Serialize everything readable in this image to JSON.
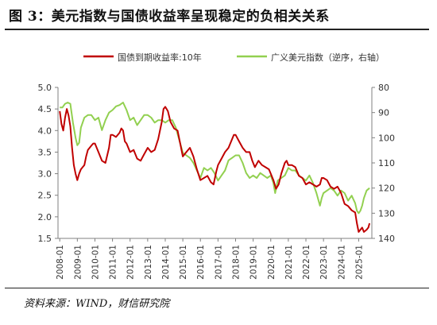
{
  "figure": {
    "title": "图 3：美元指数与国债收益率呈现稳定的负相关关系",
    "source": "资料来源：WIND，财信研究院"
  },
  "colors": {
    "bond": "#c00000",
    "dxy": "#92d050",
    "axis": "#808080",
    "text": "#333333"
  },
  "chart_data": {
    "type": "line",
    "title": "",
    "legend_placement": "top",
    "grid": false,
    "categories": [
      "2008-01",
      "2009-01",
      "2010-01",
      "2011-01",
      "2012-01",
      "2013-01",
      "2014-01",
      "2015-01",
      "2016-01",
      "2017-01",
      "2018-01",
      "2019-01",
      "2020-01",
      "2021-01",
      "2022-01",
      "2023-01",
      "2024-01",
      "2025-01"
    ],
    "x_range": [
      2007.9,
      2025.75
    ],
    "y_left": {
      "range": [
        1.5,
        5.0
      ],
      "ticks": [
        "1.5",
        "2.0",
        "2.5",
        "3.0",
        "3.5",
        "4.0",
        "4.5",
        "5.0"
      ]
    },
    "y_right": {
      "range": [
        140,
        80
      ],
      "inverted": true,
      "ticks": [
        "80",
        "90",
        "100",
        "110",
        "120",
        "130",
        "140"
      ]
    },
    "series": [
      {
        "name": "国债到期收益率:10年",
        "axis": "left",
        "color": "#c00000",
        "points": [
          [
            2008.0,
            4.45
          ],
          [
            2008.1,
            4.15
          ],
          [
            2008.2,
            4.0
          ],
          [
            2008.3,
            4.3
          ],
          [
            2008.4,
            4.5
          ],
          [
            2008.5,
            4.35
          ],
          [
            2008.6,
            4.1
          ],
          [
            2008.7,
            3.6
          ],
          [
            2008.8,
            3.2
          ],
          [
            2008.9,
            3.0
          ],
          [
            2009.0,
            2.85
          ],
          [
            2009.1,
            3.0
          ],
          [
            2009.2,
            3.1
          ],
          [
            2009.3,
            3.15
          ],
          [
            2009.4,
            3.2
          ],
          [
            2009.5,
            3.4
          ],
          [
            2009.6,
            3.55
          ],
          [
            2009.7,
            3.6
          ],
          [
            2009.8,
            3.65
          ],
          [
            2009.9,
            3.7
          ],
          [
            2010.0,
            3.7
          ],
          [
            2010.2,
            3.5
          ],
          [
            2010.4,
            3.3
          ],
          [
            2010.6,
            3.25
          ],
          [
            2010.8,
            3.6
          ],
          [
            2010.9,
            3.9
          ],
          [
            2011.0,
            3.9
          ],
          [
            2011.2,
            3.85
          ],
          [
            2011.4,
            3.95
          ],
          [
            2011.5,
            4.05
          ],
          [
            2011.6,
            4.0
          ],
          [
            2011.7,
            3.75
          ],
          [
            2011.8,
            3.7
          ],
          [
            2011.9,
            3.6
          ],
          [
            2012.0,
            3.5
          ],
          [
            2012.2,
            3.55
          ],
          [
            2012.4,
            3.35
          ],
          [
            2012.6,
            3.3
          ],
          [
            2012.8,
            3.45
          ],
          [
            2013.0,
            3.6
          ],
          [
            2013.2,
            3.5
          ],
          [
            2013.4,
            3.55
          ],
          [
            2013.6,
            3.8
          ],
          [
            2013.8,
            4.2
          ],
          [
            2013.9,
            4.5
          ],
          [
            2014.0,
            4.55
          ],
          [
            2014.15,
            4.45
          ],
          [
            2014.3,
            4.2
          ],
          [
            2014.5,
            4.05
          ],
          [
            2014.7,
            4.0
          ],
          [
            2014.85,
            3.7
          ],
          [
            2015.0,
            3.4
          ],
          [
            2015.2,
            3.5
          ],
          [
            2015.4,
            3.6
          ],
          [
            2015.6,
            3.4
          ],
          [
            2015.8,
            3.1
          ],
          [
            2016.0,
            2.85
          ],
          [
            2016.2,
            2.9
          ],
          [
            2016.4,
            2.95
          ],
          [
            2016.6,
            2.8
          ],
          [
            2016.75,
            2.75
          ],
          [
            2016.9,
            3.05
          ],
          [
            2017.0,
            3.2
          ],
          [
            2017.2,
            3.35
          ],
          [
            2017.4,
            3.5
          ],
          [
            2017.6,
            3.6
          ],
          [
            2017.8,
            3.8
          ],
          [
            2017.9,
            3.9
          ],
          [
            2018.0,
            3.9
          ],
          [
            2018.2,
            3.75
          ],
          [
            2018.4,
            3.6
          ],
          [
            2018.6,
            3.5
          ],
          [
            2018.8,
            3.5
          ],
          [
            2018.95,
            3.3
          ],
          [
            2019.1,
            3.15
          ],
          [
            2019.3,
            3.3
          ],
          [
            2019.5,
            3.2
          ],
          [
            2019.7,
            3.15
          ],
          [
            2019.9,
            3.1
          ],
          [
            2020.0,
            3.0
          ],
          [
            2020.15,
            2.85
          ],
          [
            2020.3,
            2.65
          ],
          [
            2020.45,
            2.75
          ],
          [
            2020.6,
            3.0
          ],
          [
            2020.8,
            3.25
          ],
          [
            2020.9,
            3.3
          ],
          [
            2021.0,
            3.2
          ],
          [
            2021.2,
            3.2
          ],
          [
            2021.4,
            3.15
          ],
          [
            2021.6,
            2.95
          ],
          [
            2021.8,
            2.9
          ],
          [
            2022.0,
            2.75
          ],
          [
            2022.2,
            2.8
          ],
          [
            2022.4,
            2.75
          ],
          [
            2022.6,
            2.7
          ],
          [
            2022.8,
            2.75
          ],
          [
            2022.9,
            2.9
          ],
          [
            2023.0,
            2.9
          ],
          [
            2023.2,
            2.85
          ],
          [
            2023.4,
            2.7
          ],
          [
            2023.6,
            2.65
          ],
          [
            2023.8,
            2.7
          ],
          [
            2024.0,
            2.55
          ],
          [
            2024.2,
            2.3
          ],
          [
            2024.4,
            2.25
          ],
          [
            2024.6,
            2.15
          ],
          [
            2024.8,
            2.1
          ],
          [
            2024.9,
            1.85
          ],
          [
            2025.0,
            1.65
          ],
          [
            2025.1,
            1.7
          ],
          [
            2025.2,
            1.75
          ],
          [
            2025.3,
            1.65
          ],
          [
            2025.45,
            1.7
          ],
          [
            2025.55,
            1.75
          ],
          [
            2025.62,
            1.85
          ]
        ]
      },
      {
        "name": "广义美元指数（逆序，右轴）",
        "axis": "right",
        "color": "#92d050",
        "points": [
          [
            2008.0,
            88
          ],
          [
            2008.15,
            88
          ],
          [
            2008.3,
            86.5
          ],
          [
            2008.45,
            86
          ],
          [
            2008.6,
            86.5
          ],
          [
            2008.75,
            94
          ],
          [
            2008.9,
            100
          ],
          [
            2009.0,
            103
          ],
          [
            2009.1,
            102
          ],
          [
            2009.2,
            96
          ],
          [
            2009.4,
            92
          ],
          [
            2009.6,
            91
          ],
          [
            2009.8,
            91
          ],
          [
            2010.0,
            93
          ],
          [
            2010.2,
            92
          ],
          [
            2010.4,
            97
          ],
          [
            2010.6,
            93
          ],
          [
            2010.8,
            90
          ],
          [
            2011.0,
            89
          ],
          [
            2011.2,
            87.5
          ],
          [
            2011.4,
            87
          ],
          [
            2011.6,
            86
          ],
          [
            2011.8,
            89
          ],
          [
            2012.0,
            93
          ],
          [
            2012.2,
            92
          ],
          [
            2012.4,
            95
          ],
          [
            2012.6,
            93
          ],
          [
            2012.8,
            91
          ],
          [
            2013.0,
            91
          ],
          [
            2013.2,
            92
          ],
          [
            2013.4,
            94
          ],
          [
            2013.6,
            93
          ],
          [
            2013.8,
            93
          ],
          [
            2014.0,
            94
          ],
          [
            2014.2,
            93
          ],
          [
            2014.4,
            93
          ],
          [
            2014.6,
            96
          ],
          [
            2014.8,
            101
          ],
          [
            2015.0,
            106
          ],
          [
            2015.2,
            107
          ],
          [
            2015.4,
            108
          ],
          [
            2015.6,
            110
          ],
          [
            2015.8,
            113
          ],
          [
            2016.0,
            116
          ],
          [
            2016.2,
            112
          ],
          [
            2016.4,
            113
          ],
          [
            2016.6,
            112
          ],
          [
            2016.8,
            114
          ],
          [
            2017.0,
            117
          ],
          [
            2017.2,
            115
          ],
          [
            2017.4,
            113
          ],
          [
            2017.6,
            109
          ],
          [
            2017.8,
            108
          ],
          [
            2018.0,
            107
          ],
          [
            2018.2,
            107
          ],
          [
            2018.4,
            110
          ],
          [
            2018.6,
            114
          ],
          [
            2018.8,
            116
          ],
          [
            2019.0,
            115
          ],
          [
            2019.2,
            116
          ],
          [
            2019.4,
            114
          ],
          [
            2019.6,
            115
          ],
          [
            2019.8,
            116
          ],
          [
            2020.0,
            115
          ],
          [
            2020.15,
            118
          ],
          [
            2020.25,
            122
          ],
          [
            2020.4,
            117
          ],
          [
            2020.6,
            116
          ],
          [
            2020.8,
            115
          ],
          [
            2021.0,
            112
          ],
          [
            2021.2,
            113
          ],
          [
            2021.4,
            113
          ],
          [
            2021.6,
            115
          ],
          [
            2021.8,
            116
          ],
          [
            2022.0,
            117
          ],
          [
            2022.2,
            115
          ],
          [
            2022.4,
            118
          ],
          [
            2022.6,
            122
          ],
          [
            2022.8,
            127
          ],
          [
            2022.9,
            124
          ],
          [
            2023.0,
            122
          ],
          [
            2023.2,
            121
          ],
          [
            2023.4,
            120
          ],
          [
            2023.6,
            121
          ],
          [
            2023.8,
            123
          ],
          [
            2024.0,
            121
          ],
          [
            2024.2,
            122
          ],
          [
            2024.4,
            125
          ],
          [
            2024.6,
            123
          ],
          [
            2024.8,
            126
          ],
          [
            2024.9,
            129
          ],
          [
            2025.0,
            130
          ],
          [
            2025.1,
            129
          ],
          [
            2025.2,
            127
          ],
          [
            2025.3,
            124
          ],
          [
            2025.45,
            121
          ],
          [
            2025.62,
            120
          ]
        ]
      }
    ]
  }
}
